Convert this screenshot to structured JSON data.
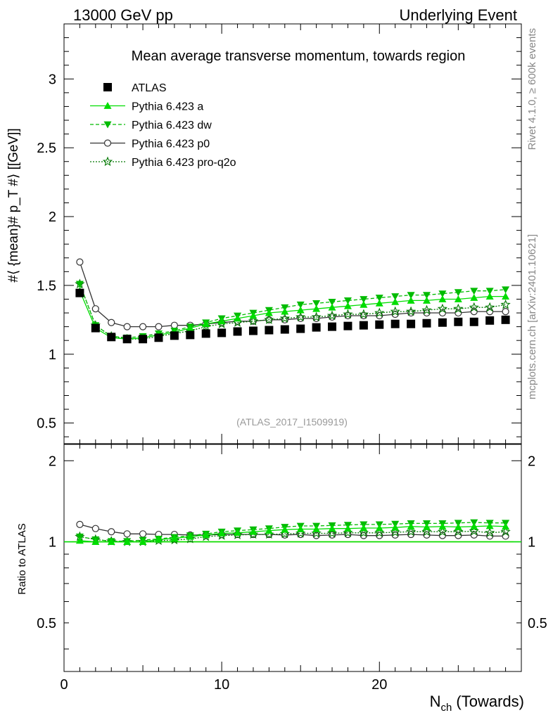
{
  "header": {
    "left": "13000 GeV pp",
    "right": "Underlying Event",
    "side_top": "Rivet 4.1.0, ≥ 600k events",
    "side_bottom": "mcplots.cern.ch [arXiv:2401.10621]"
  },
  "colors": {
    "atlas": "#000000",
    "pythia_a": "#00dd00",
    "pythia_dw": "#00bb00",
    "pythia_p0": "#333333",
    "pythia_proq2o": "#007700"
  },
  "chart_data": [
    {
      "type": "scatter",
      "panel": "main",
      "title": "Mean average transverse momentum, towards region",
      "xlabel": "N_ch (Towards)",
      "ylabel": "#⟨ {mean}# p_T #⟩ [[GeV]]",
      "xlim": [
        0,
        29
      ],
      "ylim": [
        0.35,
        3.4
      ],
      "yticks": [
        0.5,
        1,
        1.5,
        2,
        2.5,
        3
      ],
      "yticklabels": [
        "0.5",
        "1",
        "1.5",
        "2",
        "2.5",
        "3"
      ],
      "watermark": "(ATLAS_2017_I1509919)",
      "legend_position": "top-left",
      "x": [
        1,
        2,
        3,
        4,
        5,
        6,
        7,
        8,
        9,
        10,
        11,
        12,
        13,
        14,
        15,
        16,
        17,
        18,
        19,
        20,
        21,
        22,
        23,
        24,
        25,
        26,
        27,
        28
      ],
      "series": [
        {
          "name": "ATLAS",
          "style": "data",
          "values": [
            1.445,
            1.19,
            1.125,
            1.11,
            1.11,
            1.12,
            1.135,
            1.14,
            1.15,
            1.155,
            1.165,
            1.17,
            1.175,
            1.18,
            1.185,
            1.195,
            1.2,
            1.205,
            1.21,
            1.215,
            1.22,
            1.22,
            1.225,
            1.23,
            1.235,
            1.235,
            1.245,
            1.25
          ]
        },
        {
          "name": "Pythia 6.423 a",
          "style": "a",
          "values": [
            1.46,
            1.19,
            1.12,
            1.11,
            1.12,
            1.14,
            1.16,
            1.19,
            1.22,
            1.24,
            1.26,
            1.28,
            1.3,
            1.31,
            1.32,
            1.33,
            1.34,
            1.35,
            1.36,
            1.37,
            1.38,
            1.39,
            1.39,
            1.4,
            1.4,
            1.41,
            1.42,
            1.42
          ]
        },
        {
          "name": "Pythia 6.423 dw",
          "style": "dw",
          "values": [
            1.51,
            1.21,
            1.13,
            1.12,
            1.13,
            1.15,
            1.17,
            1.2,
            1.23,
            1.26,
            1.28,
            1.3,
            1.32,
            1.34,
            1.36,
            1.37,
            1.38,
            1.39,
            1.4,
            1.41,
            1.42,
            1.43,
            1.43,
            1.44,
            1.45,
            1.46,
            1.46,
            1.47
          ]
        },
        {
          "name": "Pythia 6.423 p0",
          "style": "p0",
          "values": [
            1.67,
            1.33,
            1.23,
            1.2,
            1.2,
            1.2,
            1.21,
            1.21,
            1.22,
            1.23,
            1.24,
            1.24,
            1.25,
            1.25,
            1.26,
            1.26,
            1.27,
            1.28,
            1.28,
            1.28,
            1.29,
            1.3,
            1.3,
            1.3,
            1.3,
            1.31,
            1.31,
            1.31
          ]
        },
        {
          "name": "Pythia 6.423 pro-q2o",
          "style": "proq2o",
          "values": [
            1.51,
            1.21,
            1.13,
            1.11,
            1.11,
            1.13,
            1.15,
            1.17,
            1.2,
            1.22,
            1.23,
            1.24,
            1.25,
            1.26,
            1.27,
            1.27,
            1.28,
            1.29,
            1.29,
            1.3,
            1.31,
            1.31,
            1.32,
            1.33,
            1.33,
            1.34,
            1.34,
            1.36
          ]
        }
      ]
    },
    {
      "type": "scatter",
      "panel": "ratio",
      "ylabel": "Ratio to ATLAS",
      "xlabel": "N_ch (Towards)",
      "xlim": [
        0,
        29
      ],
      "ylim": [
        0.33,
        2.3
      ],
      "yticks": [
        0.5,
        1,
        2
      ],
      "yticklabels": [
        "0.5",
        "1",
        "2"
      ],
      "xticks": [
        0,
        10,
        20
      ],
      "xticklabels": [
        "0",
        "10",
        "20"
      ],
      "x": [
        1,
        2,
        3,
        4,
        5,
        6,
        7,
        8,
        9,
        10,
        11,
        12,
        13,
        14,
        15,
        16,
        17,
        18,
        19,
        20,
        21,
        22,
        23,
        24,
        25,
        26,
        27,
        28
      ],
      "series": [
        {
          "name": "Pythia 6.423 a",
          "style": "a",
          "values": [
            1.01,
            1.0,
            1.0,
            1.0,
            1.0,
            1.02,
            1.03,
            1.045,
            1.06,
            1.075,
            1.08,
            1.09,
            1.1,
            1.11,
            1.115,
            1.115,
            1.12,
            1.12,
            1.125,
            1.125,
            1.13,
            1.14,
            1.135,
            1.14,
            1.135,
            1.14,
            1.145,
            1.14
          ]
        },
        {
          "name": "Pythia 6.423 dw",
          "style": "dw",
          "values": [
            1.045,
            1.02,
            1.005,
            1.005,
            1.015,
            1.025,
            1.04,
            1.055,
            1.07,
            1.09,
            1.1,
            1.11,
            1.12,
            1.135,
            1.145,
            1.145,
            1.15,
            1.155,
            1.16,
            1.16,
            1.165,
            1.17,
            1.17,
            1.17,
            1.175,
            1.18,
            1.175,
            1.175
          ]
        },
        {
          "name": "Pythia 6.423 p0",
          "style": "p0",
          "values": [
            1.16,
            1.12,
            1.09,
            1.07,
            1.07,
            1.065,
            1.065,
            1.06,
            1.06,
            1.065,
            1.065,
            1.065,
            1.065,
            1.06,
            1.065,
            1.055,
            1.06,
            1.065,
            1.055,
            1.055,
            1.06,
            1.065,
            1.06,
            1.055,
            1.055,
            1.06,
            1.05,
            1.05
          ]
        },
        {
          "name": "Pythia 6.423 pro-q2o",
          "style": "proq2o",
          "values": [
            1.045,
            1.02,
            1.005,
            1.0,
            1.0,
            1.01,
            1.015,
            1.025,
            1.045,
            1.055,
            1.06,
            1.065,
            1.065,
            1.07,
            1.075,
            1.075,
            1.075,
            1.08,
            1.08,
            1.08,
            1.085,
            1.09,
            1.09,
            1.09,
            1.09,
            1.095,
            1.08,
            1.09
          ]
        }
      ]
    }
  ]
}
